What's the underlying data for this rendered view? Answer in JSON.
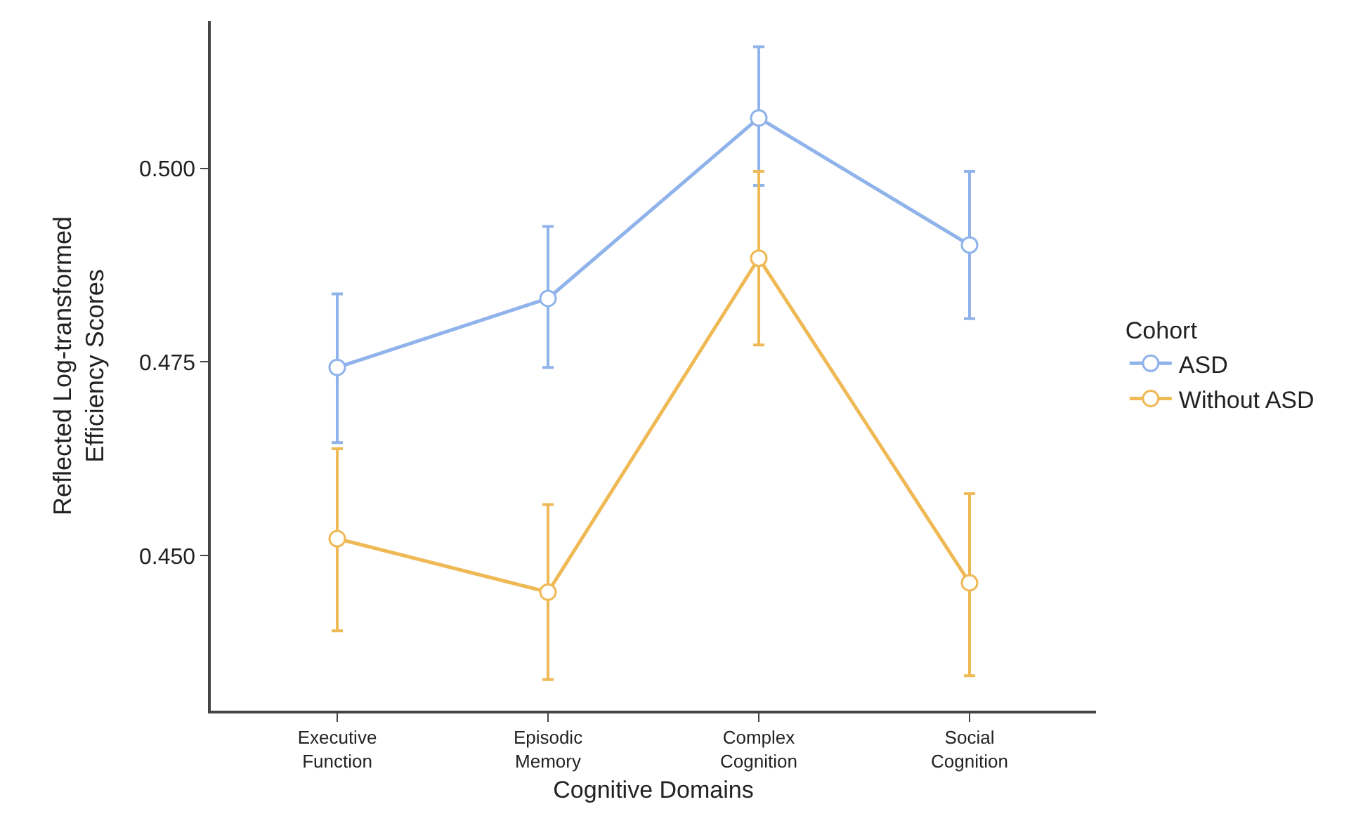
{
  "chart_data": {
    "type": "line",
    "xlabel": "Cognitive Domains",
    "ylabel": "Reflected Log-transformed\nEfficiency Scores",
    "legend_title": "Cohort",
    "categories": [
      "Executive\nFunction",
      "Episodic\nMemory",
      "Complex\nCognition",
      "Social\nCognition"
    ],
    "series": [
      {
        "name": "ASD",
        "color": "#8fb3ea",
        "values": [
          0.4743,
          0.4832,
          0.5065,
          0.4901
        ],
        "errors": [
          [
            0.4646,
            0.4838
          ],
          [
            0.4743,
            0.4925
          ],
          [
            0.4978,
            0.5157
          ],
          [
            0.4806,
            0.4996
          ]
        ]
      },
      {
        "name": "Without ASD",
        "color": "#efb955",
        "values": [
          0.4522,
          0.4453,
          0.4884,
          0.4465
        ],
        "errors": [
          [
            0.4403,
            0.4638
          ],
          [
            0.434,
            0.4566
          ],
          [
            0.4772,
            0.4996
          ],
          [
            0.4345,
            0.458
          ]
        ]
      }
    ],
    "ylim": [
      0.43,
      0.519
    ],
    "yticks": [
      {
        "value": 0.45,
        "label": "0.450"
      },
      0.475,
      {
        "value": 0.5,
        "label": "0.500"
      }
    ],
    "legend": "right",
    "marker": "circle",
    "line_style": "solid"
  }
}
